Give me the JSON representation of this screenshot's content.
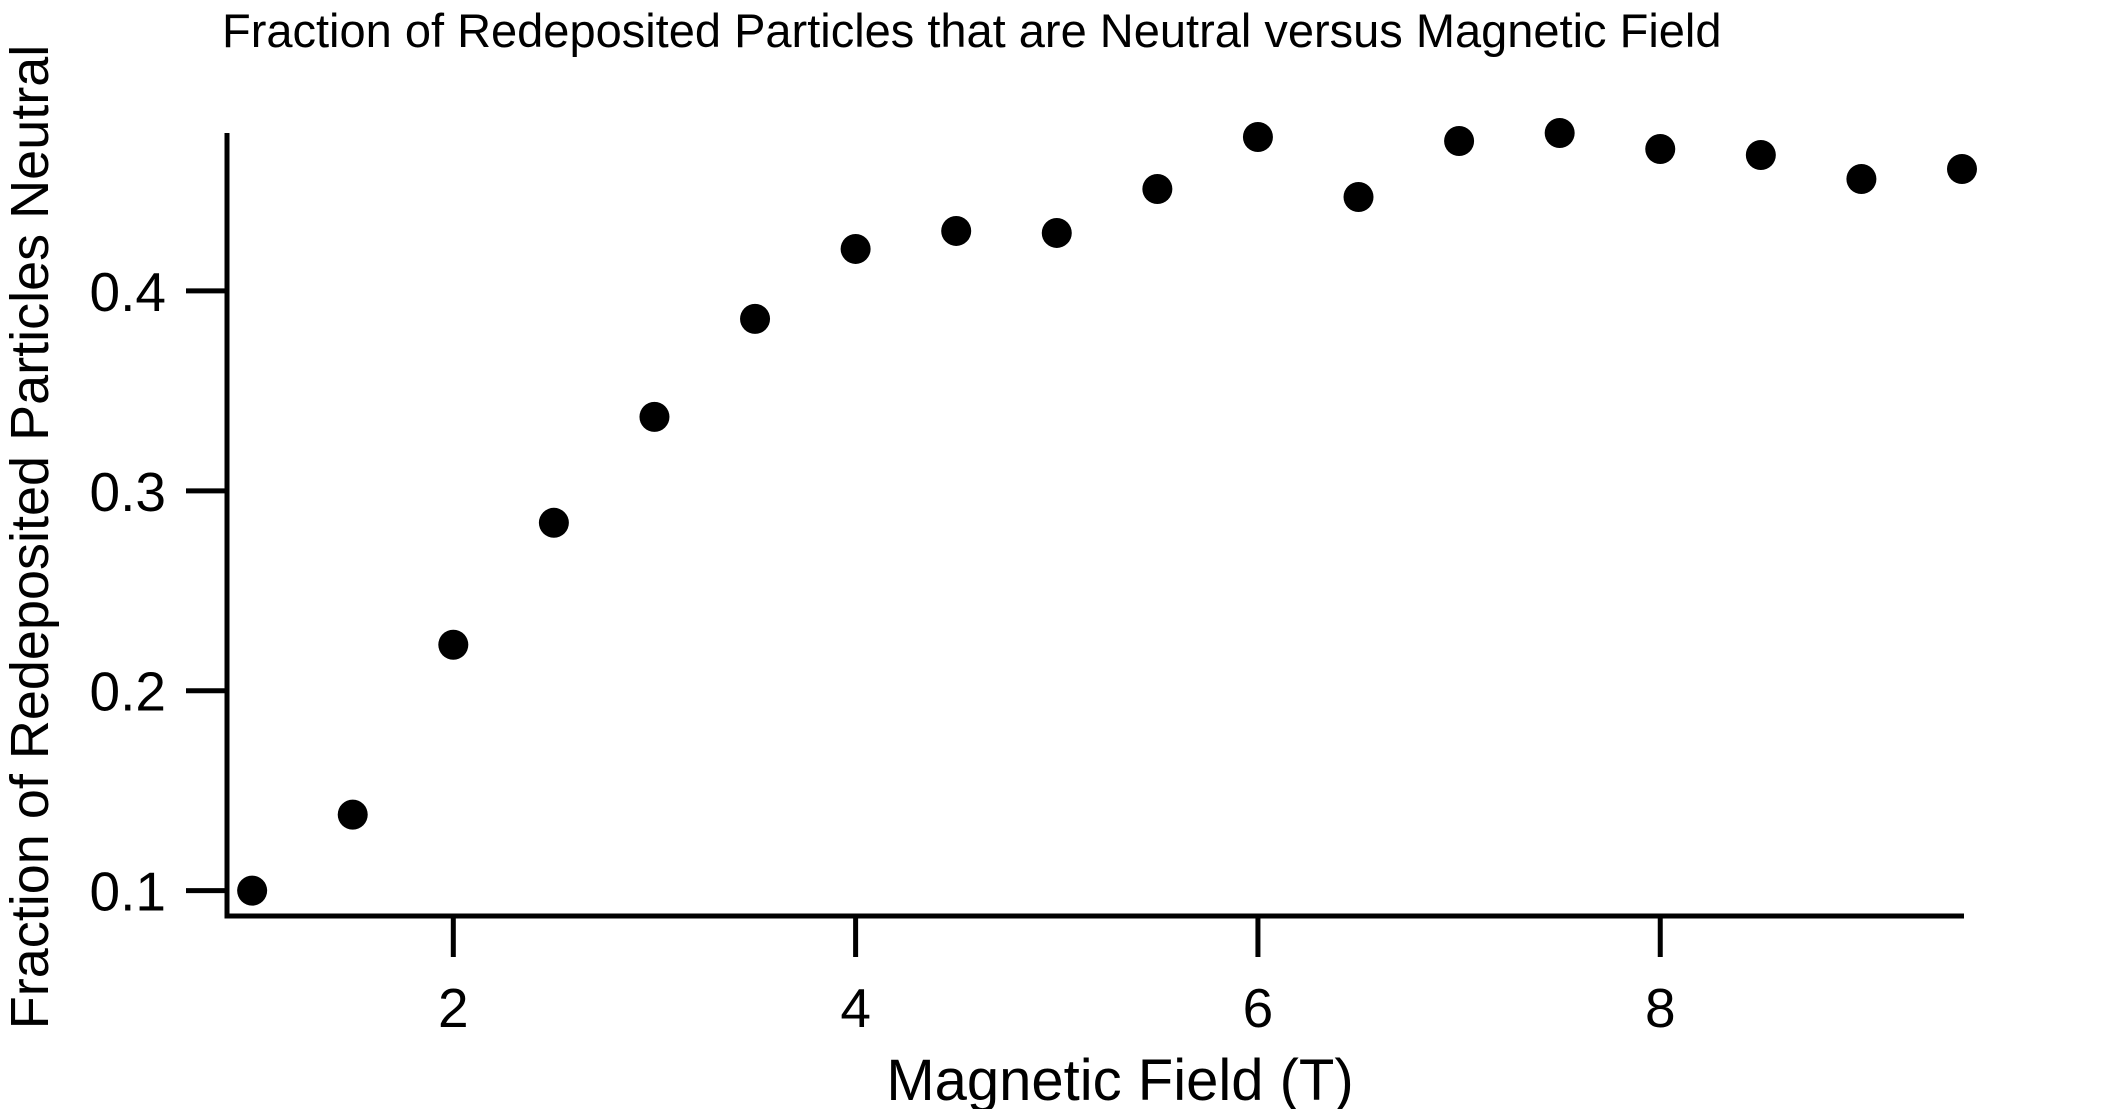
{
  "chart_data": {
    "type": "scatter",
    "title": "Fraction of Redeposited Particles that are Neutral versus Magnetic Field",
    "xlabel": "Magnetic Field (T)",
    "ylabel": "Fraction of Redeposited Particles Neutral",
    "x": [
      1.0,
      1.5,
      2.0,
      2.5,
      3.0,
      3.5,
      4.0,
      4.5,
      5.0,
      5.5,
      6.0,
      6.5,
      7.0,
      7.5,
      8.0,
      8.5,
      9.0,
      9.5
    ],
    "y": [
      0.1,
      0.138,
      0.223,
      0.284,
      0.337,
      0.386,
      0.421,
      0.43,
      0.429,
      0.451,
      0.477,
      0.447,
      0.475,
      0.479,
      0.471,
      0.468,
      0.456,
      0.461
    ],
    "xlim": [
      0.875,
      9.51
    ],
    "ylim": [
      0.0873,
      0.479
    ],
    "xticks": [
      2,
      4,
      6,
      8
    ],
    "xtick_labels": [
      "2",
      "4",
      "6",
      "8"
    ],
    "yticks": [
      0.1,
      0.2,
      0.3,
      0.4
    ],
    "ytick_labels": [
      "0.1",
      "0.2",
      "0.3",
      "0.4"
    ],
    "grid": false,
    "legend": null,
    "marker": {
      "shape": "circle",
      "color": "#000000",
      "radius_px": 15
    },
    "axis_color": "#000000",
    "background_color": "#ffffff"
  }
}
